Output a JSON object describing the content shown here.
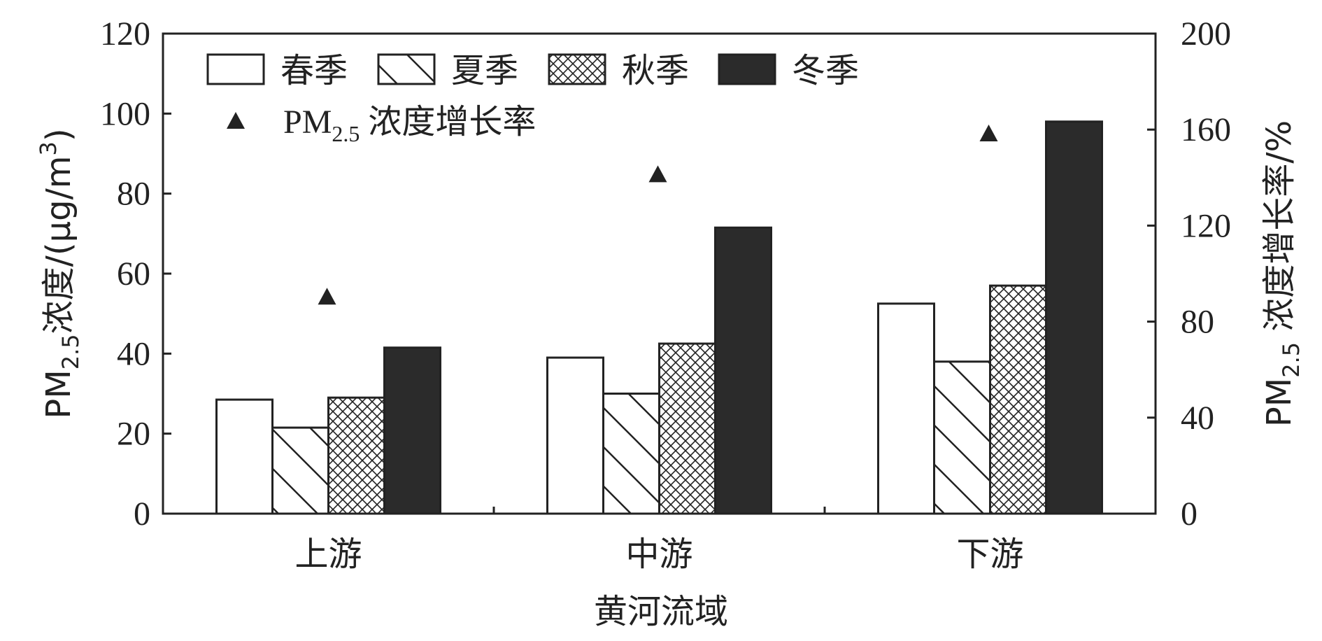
{
  "chart_data": {
    "type": "bar",
    "categories": [
      "上游",
      "中游",
      "下游"
    ],
    "xlabel": "黄河流域",
    "ylabel": {
      "prefix": "PM",
      "sub": "2.5",
      "suffix": "浓度/(μg/m",
      "sup": "3",
      "close": ")"
    },
    "y2label": {
      "prefix": "PM",
      "sub": "2.5",
      "suffix": " 浓度增长率/%"
    },
    "ylim": [
      0,
      120
    ],
    "y2lim": [
      0,
      200
    ],
    "yticks": [
      "0",
      "20",
      "40",
      "60",
      "80",
      "100",
      "120"
    ],
    "y2ticks": [
      "0",
      "40",
      "80",
      "120",
      "160",
      "200"
    ],
    "series": [
      {
        "name": "春季",
        "pattern": "empty",
        "values": [
          28.5,
          39,
          52.5
        ]
      },
      {
        "name": "夏季",
        "pattern": "diagonal",
        "values": [
          21.5,
          30,
          38
        ]
      },
      {
        "name": "秋季",
        "pattern": "crosshatch",
        "values": [
          29,
          42.5,
          57
        ]
      },
      {
        "name": "冬季",
        "pattern": "solid",
        "values": [
          41.5,
          71.5,
          98
        ]
      }
    ],
    "growth_series": {
      "name": {
        "prefix": "PM",
        "sub": "2.5",
        "suffix": " 浓度增长率"
      },
      "axis": "right",
      "marker": "triangle",
      "values": [
        90,
        141,
        158
      ]
    },
    "legend": "top-left",
    "grid": false,
    "colors": {
      "axis": "#222222",
      "solid": "#2b2b2b",
      "fill": "#ffffff"
    }
  }
}
